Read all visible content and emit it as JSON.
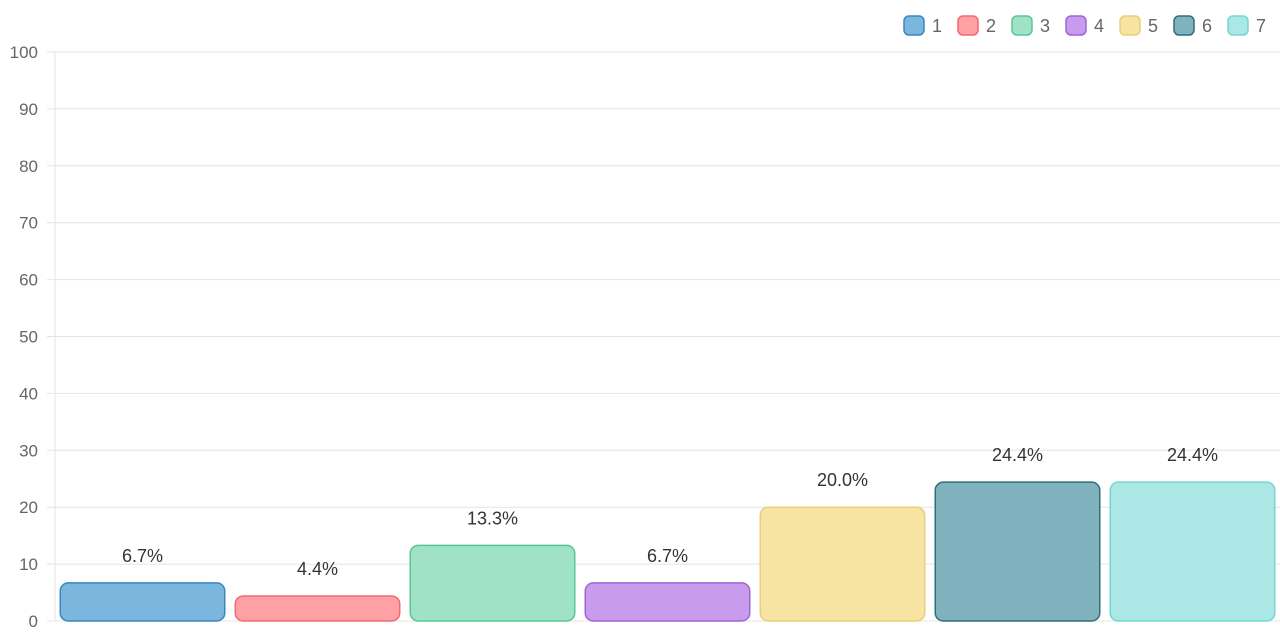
{
  "chart_data": {
    "type": "bar",
    "categories": [
      "1",
      "2",
      "3",
      "4",
      "5",
      "6",
      "7"
    ],
    "values": [
      6.7,
      4.4,
      13.3,
      6.7,
      20.0,
      24.4,
      24.4
    ],
    "value_labels": [
      "6.7%",
      "4.4%",
      "13.3%",
      "6.7%",
      "20.0%",
      "24.4%",
      "24.4%"
    ],
    "ylim": [
      0,
      100
    ],
    "yticks": [
      "0",
      "10",
      "20",
      "30",
      "40",
      "50",
      "60",
      "70",
      "80",
      "90",
      "100"
    ],
    "grid": true,
    "legend": "top-right",
    "legend_labels": [
      "1",
      "2",
      "3",
      "4",
      "5",
      "6",
      "7"
    ],
    "colors": [
      {
        "fill": "#7ab6dd",
        "stroke": "#3a87c0"
      },
      {
        "fill": "#ffa0a4",
        "stroke": "#f06a72"
      },
      {
        "fill": "#a0e2c6",
        "stroke": "#58c699"
      },
      {
        "fill": "#c89bec",
        "stroke": "#a064d8"
      },
      {
        "fill": "#f7e3a2",
        "stroke": "#eacf78"
      },
      {
        "fill": "#7fb2bd",
        "stroke": "#2f6f7d"
      },
      {
        "fill": "#aae7e5",
        "stroke": "#72d7d3"
      }
    ]
  }
}
